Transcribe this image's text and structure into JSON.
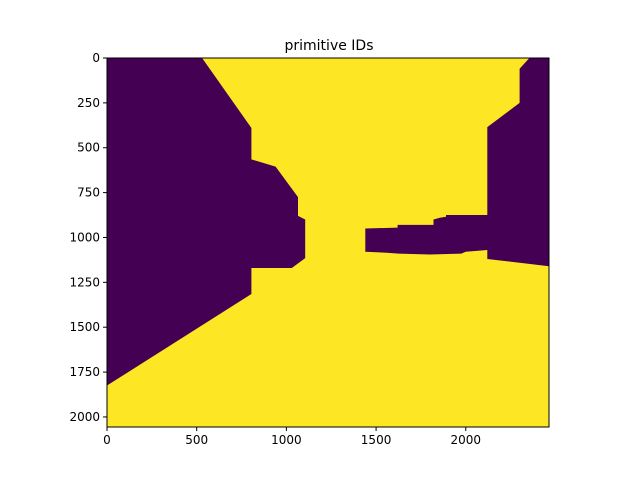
{
  "chart_data": {
    "type": "heatmap",
    "title": "primitive IDs",
    "xlabel": "",
    "ylabel": "",
    "xlim": [
      0,
      2464
    ],
    "ylim": [
      2056,
      0
    ],
    "y_axis_inverted": true,
    "grid": false,
    "legend": "none",
    "colors": {
      "background_region": "#440154",
      "foreground_region": "#fde725"
    },
    "x_ticks": [
      {
        "value": 0,
        "label": "0"
      },
      {
        "value": 500,
        "label": "500"
      },
      {
        "value": 1000,
        "label": "1000"
      },
      {
        "value": 1500,
        "label": "1500"
      },
      {
        "value": 2000,
        "label": "2000"
      }
    ],
    "y_ticks": [
      {
        "value": 0,
        "label": "0"
      },
      {
        "value": 250,
        "label": "250"
      },
      {
        "value": 500,
        "label": "500"
      },
      {
        "value": 750,
        "label": "750"
      },
      {
        "value": 1000,
        "label": "1000"
      },
      {
        "value": 1250,
        "label": "1250"
      },
      {
        "value": 1500,
        "label": "1500"
      },
      {
        "value": 1750,
        "label": "1750"
      },
      {
        "value": 2000,
        "label": "2000"
      }
    ],
    "regions": [
      {
        "value_class": "background_region",
        "polygon": [
          [
            0,
            0
          ],
          [
            530,
            0
          ],
          [
            805,
            390
          ],
          [
            805,
            565
          ],
          [
            940,
            605
          ],
          [
            1065,
            775
          ],
          [
            1065,
            880
          ],
          [
            1105,
            900
          ],
          [
            1105,
            1115
          ],
          [
            1030,
            1170
          ],
          [
            805,
            1170
          ],
          [
            805,
            1315
          ],
          [
            0,
            1825
          ]
        ]
      },
      {
        "value_class": "background_region",
        "polygon": [
          [
            2355,
            0
          ],
          [
            2464,
            0
          ],
          [
            2464,
            1160
          ],
          [
            2120,
            1120
          ],
          [
            2120,
            1070
          ],
          [
            2000,
            1080
          ],
          [
            1975,
            1090
          ],
          [
            1800,
            1095
          ],
          [
            1625,
            1090
          ],
          [
            1560,
            1085
          ],
          [
            1440,
            1080
          ],
          [
            1440,
            950
          ],
          [
            1620,
            945
          ],
          [
            1620,
            930
          ],
          [
            1820,
            930
          ],
          [
            1820,
            900
          ],
          [
            1855,
            890
          ],
          [
            1890,
            885
          ],
          [
            1890,
            875
          ],
          [
            2120,
            875
          ],
          [
            2120,
            385
          ],
          [
            2300,
            250
          ],
          [
            2300,
            60
          ]
        ]
      }
    ]
  }
}
